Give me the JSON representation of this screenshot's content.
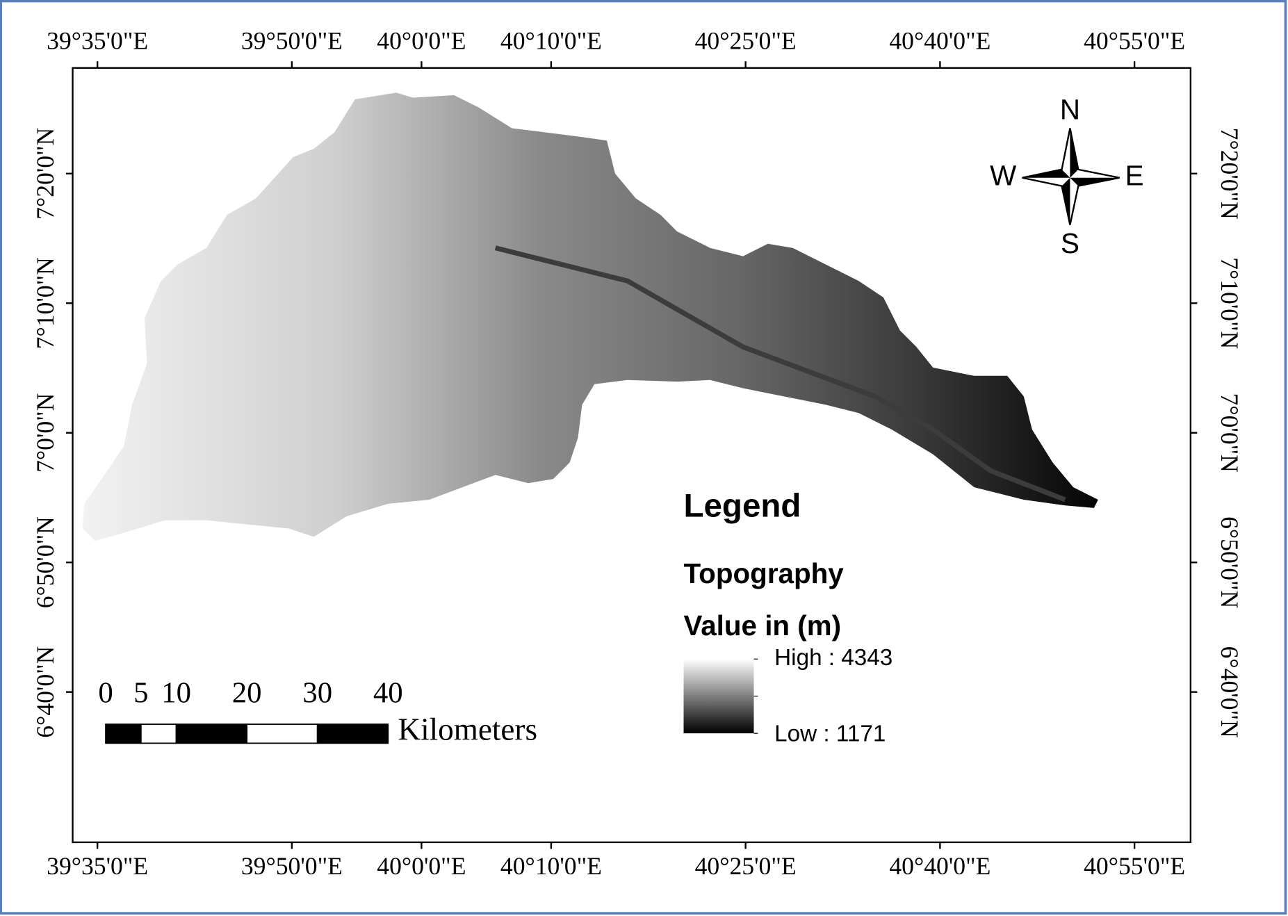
{
  "map": {
    "xlim": [
      39.5515,
      40.9888
    ],
    "ylim": [
      6.4734,
      7.4692
    ],
    "xticks": [
      {
        "value": 39.58333,
        "label": "39°35'0\"E"
      },
      {
        "value": 39.83333,
        "label": "39°50'0\"E"
      },
      {
        "value": 40,
        "label": "40°0'0\"E"
      },
      {
        "value": 40.16667,
        "label": "40°10'0\"E"
      },
      {
        "value": 40.41667,
        "label": "40°25'0\"E"
      },
      {
        "value": 40.66667,
        "label": "40°40'0\"E"
      },
      {
        "value": 40.91667,
        "label": "40°55'0\"E"
      }
    ],
    "yticks": [
      {
        "value": 7.33333,
        "label": "7°20'0\"N"
      },
      {
        "value": 7.16667,
        "label": "7°10'0\"N"
      },
      {
        "value": 7,
        "label": "7°0'0\"N"
      },
      {
        "value": 6.83333,
        "label": "6°50'0\"N"
      },
      {
        "value": 6.66667,
        "label": "6°40'0\"N"
      }
    ],
    "compass": {
      "n": "N",
      "s": "S",
      "e": "E",
      "w": "W"
    },
    "legend": {
      "title": "Legend",
      "layer": "Topography",
      "field": "Value in (m)",
      "high": "High : 4343",
      "low": "Low : 1171"
    },
    "scale_bar": {
      "ticks": [
        0,
        5,
        10,
        20,
        30,
        40
      ],
      "unit": "Kilometers"
    }
  }
}
